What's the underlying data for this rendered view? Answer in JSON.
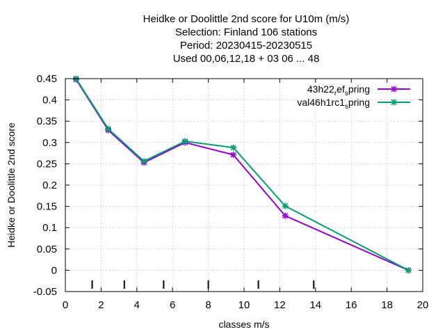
{
  "chart_data": {
    "type": "line",
    "title_lines": [
      "Heidke or Doolittle 2nd score  for U10m (m/s)",
      "Selection: Finland    106 stations",
      "Period: 20230415-20230515",
      "Used  00,06,12,18  + 03 06 ... 48"
    ],
    "xlabel": "classes m/s",
    "ylabel": "Heidke or Doolittle 2nd score",
    "xlim": [
      0,
      20
    ],
    "ylim": [
      -0.05,
      0.45
    ],
    "xticks": [
      0,
      2,
      4,
      6,
      8,
      10,
      12,
      14,
      16,
      18,
      20
    ],
    "yticks": [
      -0.05,
      0,
      0.05,
      0.1,
      0.15,
      0.2,
      0.25,
      0.3,
      0.35,
      0.4,
      0.45
    ],
    "xtick_labels": [
      "0",
      "2",
      "4",
      "6",
      "8",
      "10",
      "12",
      "14",
      "16",
      "18",
      "20"
    ],
    "ytick_labels": [
      "-0.05",
      "0",
      "0.05",
      "0.1",
      "0.15",
      "0.2",
      "0.25",
      "0.3",
      "0.35",
      "0.4",
      "0.45"
    ],
    "grid": true,
    "legend_position": "top-right",
    "class_limits": [
      1.5,
      3.3,
      5.5,
      8.0,
      10.8,
      13.9
    ],
    "series": [
      {
        "name_main": "43h22",
        "name_sub1": "r",
        "name_mid": "ef",
        "name_sub2": "s",
        "name_end": "pring",
        "color": "#9400d3",
        "x": [
          0.6,
          2.4,
          4.4,
          6.7,
          9.4,
          12.3,
          19.2
        ],
        "y": [
          0.448,
          0.329,
          0.253,
          0.3,
          0.271,
          0.128,
          0.0
        ]
      },
      {
        "name_main": "val46h1rc1",
        "name_sub1": "",
        "name_mid": "",
        "name_sub2": "s",
        "name_end": "pring",
        "color": "#009e73",
        "x": [
          0.6,
          2.4,
          4.4,
          6.7,
          9.4,
          12.3,
          19.2
        ],
        "y": [
          0.45,
          0.332,
          0.256,
          0.303,
          0.288,
          0.151,
          0.0
        ]
      }
    ]
  }
}
